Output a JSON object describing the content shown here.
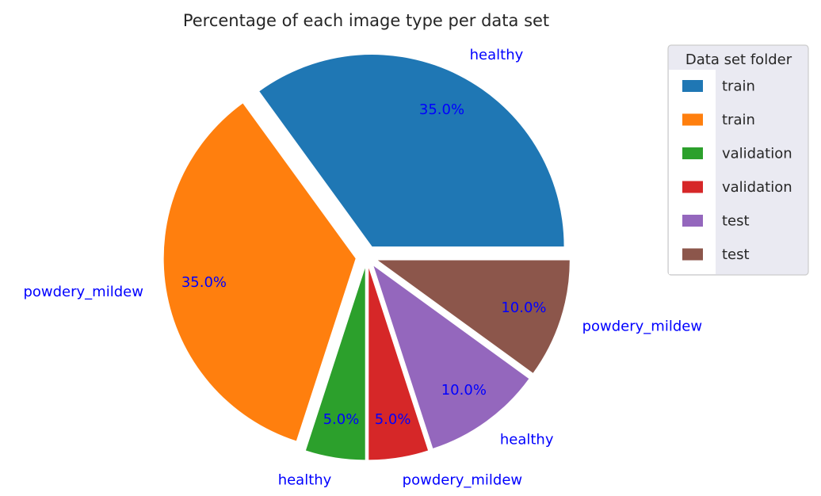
{
  "chart_data": {
    "type": "pie",
    "title": "Percentage of each image type per data set",
    "slices": [
      {
        "label": "healthy",
        "value": 35.0,
        "pct_label": "35.0%",
        "legend": "train",
        "color": "#1f77b4"
      },
      {
        "label": "powdery_mildew",
        "value": 35.0,
        "pct_label": "35.0%",
        "legend": "train",
        "color": "#ff7f0e"
      },
      {
        "label": "healthy",
        "value": 5.0,
        "pct_label": "5.0%",
        "legend": "validation",
        "color": "#2ca02c"
      },
      {
        "label": "powdery_mildew",
        "value": 5.0,
        "pct_label": "5.0%",
        "legend": "validation",
        "color": "#d62728"
      },
      {
        "label": "healthy",
        "value": 10.0,
        "pct_label": "10.0%",
        "legend": "test",
        "color": "#9467bd"
      },
      {
        "label": "powdery_mildew",
        "value": 10.0,
        "pct_label": "10.0%",
        "legend": "test",
        "color": "#8c564b"
      }
    ],
    "start_angle_deg": 0,
    "direction": "counterclockwise",
    "exploded": true,
    "label_color": "#0000ff",
    "legend": {
      "title": "Data set folder",
      "placement": "top-right",
      "background": "#eaeaf2",
      "entries": [
        "train",
        "train",
        "validation",
        "validation",
        "test",
        "test"
      ]
    }
  }
}
